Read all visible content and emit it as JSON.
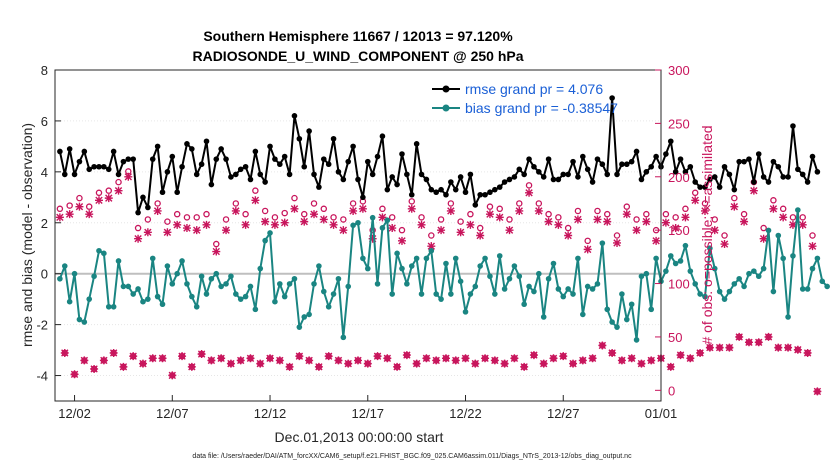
{
  "chart_data": {
    "type": "line",
    "title": "Southern Hemisphere 11667 / 12013 = 97.120%",
    "subtitle": "RADIOSONDE_U_WIND_COMPONENT @ 250 hPa",
    "xlabel": "Dec.01,2013 00:00:00 start",
    "ylabel": "rmse and bias (model - observation)",
    "y2label": "# of obs: o=possible; ×=assimilated",
    "footer": "data file: /Users/raeder/DAI/ATM_forcXX/CAM6_setup/f.e21.FHIST_BGC.f09_025.CAM6assim.011/Diags_NTrS_2013-12/obs_diag_output.nc",
    "xlim": [
      0.5,
      31.5
    ],
    "ylim": [
      -5,
      8
    ],
    "y2lim": [
      -10,
      300
    ],
    "xticks": [
      1.5,
      6.5,
      11.5,
      16.5,
      21.5,
      26.5,
      31.5
    ],
    "xtick_labels": [
      "12/02",
      "12/07",
      "12/12",
      "12/17",
      "12/22",
      "12/27",
      "01/01"
    ],
    "yticks": [
      -4,
      -2,
      0,
      2,
      4,
      6,
      8
    ],
    "ytick_labels": [
      "-4",
      "-2",
      "0",
      "2",
      "4",
      "6",
      "8"
    ],
    "y2ticks": [
      0,
      50,
      100,
      150,
      200,
      250,
      300
    ],
    "y2tick_labels": [
      "0",
      "50",
      "100",
      "150",
      "200",
      "250",
      "300"
    ],
    "zero_line": 0,
    "legend_position": "top-right",
    "colors": {
      "rmse": "#000000",
      "bias": "#1a8582",
      "obs": "#c8155c",
      "legend_text": "#1a5fd6",
      "zero_line": "#bfbfbf"
    },
    "series": [
      {
        "name": "rmse grand pr = 4.076",
        "axis": "left",
        "x_start": 0.75,
        "x_step": 0.25,
        "values": [
          4.8,
          3.9,
          4.9,
          3.9,
          4.4,
          4.8,
          4.1,
          4.2,
          4.2,
          4.2,
          4.1,
          4.8,
          3.9,
          4.4,
          4.5,
          4.5,
          2.4,
          3.0,
          2.6,
          4.5,
          5.0,
          3.2,
          4.0,
          4.6,
          3.2,
          4.2,
          5.1,
          4.9,
          3.9,
          4.3,
          5.2,
          3.5,
          4.5,
          4.9,
          4.5,
          3.8,
          3.9,
          4.1,
          4.2,
          3.7,
          4.8,
          3.9,
          3.6,
          5.0,
          4.5,
          4.3,
          4.6,
          3.9,
          6.2,
          5.3,
          4.2,
          5.6,
          3.9,
          3.4,
          4.5,
          4.3,
          5.3,
          4.0,
          3.7,
          4.4,
          5.0,
          3.7,
          3.0,
          4.4,
          3.9,
          4.6,
          5.4,
          3.3,
          3.8,
          3.5,
          4.7,
          3.9,
          3.1,
          5.1,
          3.9,
          3.7,
          3.3,
          3.2,
          3.3,
          3.1,
          3.6,
          3.3,
          3.8,
          3.2,
          3.9,
          2.7,
          3.1,
          3.1,
          3.2,
          3.3,
          3.4,
          3.6,
          3.7,
          3.8,
          4.1,
          3.9,
          4.5,
          4.2,
          4.0,
          3.8,
          4.5,
          3.7,
          3.7,
          3.9,
          3.9,
          4.4,
          3.8,
          4.6,
          4.1,
          3.6,
          4.5,
          4.3,
          3.9,
          6.9,
          3.9,
          4.3,
          4.3,
          4.4,
          4.8,
          3.7,
          4.0,
          4.2,
          4.6,
          4.2,
          4.7,
          5.2,
          4.0,
          4.5,
          4.0,
          4.2,
          3.6,
          3.4,
          3.4,
          3.7,
          3.8,
          3.4,
          4.2,
          3.9,
          3.3,
          4.4,
          4.4,
          4.5,
          3.6,
          4.7,
          3.8,
          3.6,
          4.4,
          4.2,
          3.8,
          3.8,
          5.8,
          4.1,
          3.9,
          3.6,
          4.6,
          4.0
        ]
      },
      {
        "name": "bias grand pr = -0.38547",
        "axis": "left",
        "x_start": 0.75,
        "x_step": 0.25,
        "values": [
          -0.2,
          0.3,
          -1.1,
          0.0,
          -1.8,
          -1.9,
          -1.0,
          -0.1,
          0.9,
          0.8,
          -1.3,
          -1.3,
          0.5,
          -0.5,
          -0.5,
          -0.8,
          -0.6,
          -1.1,
          -1.0,
          0.6,
          -0.9,
          -1.2,
          0.3,
          -0.4,
          0.0,
          0.5,
          -0.4,
          -0.9,
          -1.3,
          -0.1,
          -0.8,
          -0.2,
          0.0,
          -0.5,
          -0.4,
          -0.1,
          -0.8,
          -1.0,
          -0.9,
          -0.5,
          -1.4,
          0.2,
          1.3,
          1.6,
          -1.1,
          -0.4,
          -0.9,
          -0.4,
          -0.2,
          -2.1,
          -1.7,
          -1.6,
          -0.4,
          0.3,
          -0.7,
          -1.3,
          -0.8,
          -0.2,
          -2.5,
          -0.5,
          1.9,
          2.0,
          0.6,
          0.2,
          2.2,
          -0.4,
          1.8,
          2.1,
          -0.8,
          0.8,
          0.2,
          -0.4,
          0.3,
          0.6,
          -0.8,
          0.6,
          0.9,
          -0.8,
          -1.0,
          0.4,
          -0.8,
          0.6,
          -0.3,
          -1.5,
          -0.8,
          -0.5,
          0.3,
          0.6,
          -0.1,
          -0.8,
          0.7,
          -0.6,
          -0.2,
          0.3,
          -0.1,
          -1.2,
          -0.5,
          -0.7,
          0.0,
          -1.7,
          -0.2,
          0.4,
          -0.6,
          -0.9,
          -0.6,
          -0.8,
          0.6,
          -1.6,
          -0.5,
          -0.6,
          -0.4,
          1.2,
          -1.4,
          -1.9,
          -2.1,
          -0.8,
          -1.8,
          -1.2,
          -2.6,
          -0.1,
          0.0,
          -1.4,
          0.6,
          -0.3,
          0.1,
          0.7,
          0.4,
          0.5,
          1.1,
          0.1,
          -0.4,
          -0.8,
          -0.9,
          1.0,
          0.2,
          -0.7,
          -1.0,
          -0.7,
          -0.4,
          -0.2,
          -0.5,
          0.0,
          0.1,
          -0.1,
          0.2,
          1.7,
          -0.7,
          1.5,
          0.6,
          -1.7,
          0.7,
          2.5,
          -0.6,
          -0.6,
          0.2,
          0.6,
          -0.3,
          -0.5
        ]
      },
      {
        "name": "possible",
        "axis": "right",
        "x_start": 0.75,
        "x_step": 0.25,
        "values": [
          170,
          35,
          173,
          15,
          180,
          28,
          172,
          20,
          185,
          28,
          187,
          35,
          195,
          22,
          205,
          32,
          152,
          25,
          160,
          30,
          175,
          30,
          158,
          14,
          165,
          32,
          162,
          22,
          162,
          34,
          165,
          28,
          137,
          30,
          160,
          25,
          175,
          28,
          165,
          30,
          187,
          25,
          168,
          30,
          162,
          28,
          166,
          22,
          180,
          32,
          165,
          28,
          175,
          22,
          170,
          32,
          162,
          28,
          160,
          25,
          175,
          28,
          177,
          25,
          150,
          32,
          170,
          30,
          162,
          22,
          150,
          33,
          177,
          25,
          162,
          30,
          145,
          28,
          160,
          30,
          175,
          28,
          158,
          30,
          165,
          25,
          152,
          30,
          172,
          28,
          170,
          25,
          160,
          30,
          175,
          22,
          192,
          33,
          175,
          25,
          165,
          30,
          162,
          32,
          152,
          25,
          168,
          28,
          140,
          30,
          168,
          42,
          165,
          35,
          145,
          28,
          172,
          30,
          160,
          25,
          165,
          28,
          150,
          30,
          165,
          22,
          162,
          33,
          170,
          30,
          185,
          35,
          175,
          40,
          160,
          40,
          145,
          40,
          180,
          50,
          165,
          45,
          195,
          45,
          152,
          50,
          178,
          40,
          170,
          40,
          162,
          38,
          162,
          35,
          145,
          -1
        ]
      },
      {
        "name": "assimilated",
        "axis": "right",
        "x_start": 0.75,
        "x_step": 0.25,
        "values": [
          162,
          35,
          165,
          15,
          172,
          28,
          165,
          20,
          178,
          28,
          180,
          35,
          187,
          22,
          200,
          32,
          142,
          25,
          148,
          30,
          168,
          30,
          148,
          14,
          155,
          32,
          152,
          22,
          150,
          34,
          155,
          28,
          130,
          30,
          150,
          25,
          168,
          28,
          155,
          30,
          178,
          25,
          158,
          30,
          155,
          28,
          157,
          22,
          170,
          32,
          158,
          28,
          165,
          22,
          160,
          32,
          155,
          28,
          150,
          25,
          168,
          28,
          170,
          25,
          142,
          32,
          162,
          30,
          152,
          22,
          140,
          33,
          170,
          25,
          155,
          30,
          135,
          28,
          150,
          30,
          168,
          28,
          148,
          30,
          155,
          25,
          145,
          30,
          165,
          28,
          162,
          25,
          150,
          30,
          168,
          22,
          185,
          33,
          168,
          25,
          158,
          30,
          155,
          32,
          145,
          25,
          160,
          28,
          132,
          30,
          160,
          42,
          158,
          35,
          138,
          28,
          165,
          30,
          150,
          25,
          158,
          28,
          140,
          30,
          157,
          22,
          152,
          33,
          162,
          30,
          178,
          35,
          168,
          40,
          150,
          40,
          137,
          40,
          172,
          50,
          158,
          45,
          187,
          45,
          142,
          50,
          170,
          40,
          162,
          40,
          155,
          38,
          155,
          35,
          135,
          -1
        ]
      }
    ]
  }
}
